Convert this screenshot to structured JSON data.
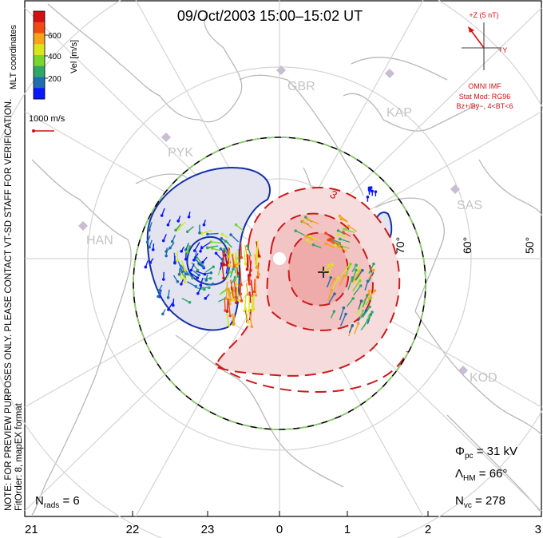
{
  "title": "09/Oct/2003  15:00–15:02  UT",
  "colorbar": {
    "unit_label": "Vel [m/s]",
    "ticks": [
      "600",
      "400",
      "200"
    ],
    "colors": [
      "#0a18ff",
      "#1f6fb0",
      "#2ea86a",
      "#7ad62a",
      "#d9e61c",
      "#f7a21b",
      "#f04a14",
      "#d41010"
    ]
  },
  "coords_label": "MLT coordinates",
  "vector_scale_label": "1000 m/s",
  "imf": {
    "z_label": "+Z (5 nT)",
    "y_label": "+Y",
    "model_line1": "OMNI IMF",
    "model_line2": "Stat Mod: RG96",
    "model_line3": "Bz+/By−, 4<BT<6"
  },
  "stations": [
    "GBR",
    "KAP",
    "PYK",
    "SAS",
    "HAN",
    "KOD"
  ],
  "lat_labels": [
    "70°",
    "60°",
    "50°"
  ],
  "contour_label": "3",
  "mlt_ticks": [
    "21",
    "22",
    "23",
    "0",
    "1",
    "2",
    "3"
  ],
  "note_line1": "NOTE: FOR PREVIEW PURPOSES ONLY. PLEASE CONTACT VT-SD STAFF FOR VERIFICATION.",
  "note_line2": "FitOrder: 8, mapEX format",
  "stats": {
    "phi_pc_label": "Φ",
    "phi_pc_sub": "pc",
    "phi_pc_value": " = 31 kV",
    "lambda_label": "Λ",
    "lambda_sub": "HM",
    "lambda_value": " = 66°",
    "nvc_label": "N",
    "nvc_sub": "vc",
    "nvc_value": " = 278",
    "nrads_label": "N",
    "nrads_sub": "rads",
    "nrads_value": " = 6"
  }
}
